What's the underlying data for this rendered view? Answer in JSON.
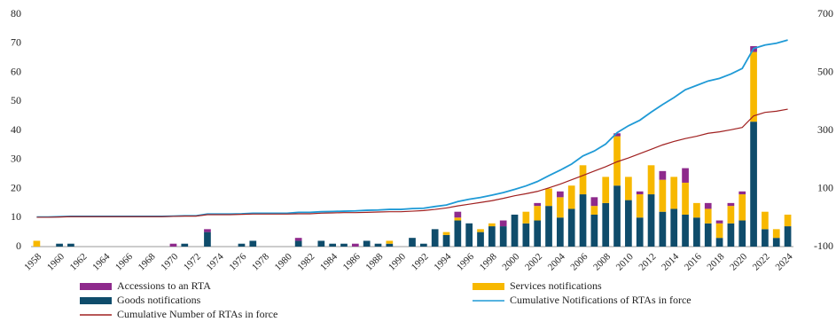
{
  "chart_data": {
    "type": "bar_line",
    "categories": [
      "1958",
      null,
      "1960",
      null,
      "1962",
      null,
      "1964",
      null,
      "1966",
      null,
      "1968",
      null,
      "1970",
      null,
      "1972",
      null,
      "1974",
      null,
      "1976",
      null,
      "1978",
      null,
      "1980",
      null,
      "1982",
      null,
      "1984",
      null,
      "1986",
      null,
      "1988",
      null,
      "1990",
      null,
      "1992",
      null,
      "1994",
      null,
      "1996",
      null,
      "1998",
      null,
      "2000",
      null,
      "2002",
      null,
      "2004",
      null,
      "2006",
      null,
      "2008",
      null,
      "2010",
      null,
      "2012",
      null,
      "2014",
      null,
      "2016",
      null,
      "2018",
      null,
      "2020",
      null,
      "2022",
      null,
      "2024"
    ],
    "ylim": [
      0,
      80
    ],
    "yticks": [
      0,
      10,
      20,
      30,
      40,
      50,
      60,
      70,
      80
    ],
    "y2lim": [
      -100,
      700
    ],
    "y2ticks": [
      -100,
      100,
      300,
      500,
      700
    ],
    "grid": false,
    "legend": "bottom",
    "series": [
      {
        "name": "Goods notifications",
        "type": "bar",
        "color": "#0f4c6b",
        "values": [
          0,
          0,
          1,
          1,
          0,
          0,
          0,
          0,
          0,
          0,
          0,
          0,
          0,
          1,
          0,
          5,
          0,
          0,
          1,
          2,
          0,
          0,
          0,
          2,
          0,
          2,
          1,
          1,
          0,
          2,
          1,
          1,
          0,
          3,
          1,
          6,
          4,
          9,
          8,
          5,
          7,
          7,
          11,
          8,
          9,
          14,
          10,
          13,
          18,
          11,
          15,
          21,
          16,
          10,
          18,
          12,
          13,
          11,
          10,
          8,
          3,
          8,
          9,
          43,
          6,
          3,
          7
        ]
      },
      {
        "name": "Services notifications",
        "type": "bar",
        "color": "#f7b800",
        "values": [
          2,
          0,
          0,
          0,
          0,
          0,
          0,
          0,
          0,
          0,
          0,
          0,
          0,
          0,
          0,
          0,
          0,
          0,
          0,
          0,
          0,
          0,
          0,
          0,
          0,
          0,
          0,
          0,
          0,
          0,
          0,
          1,
          0,
          0,
          0,
          0,
          1,
          1,
          0,
          1,
          1,
          0,
          0,
          4,
          5,
          6,
          7,
          8,
          10,
          3,
          9,
          17,
          8,
          8,
          10,
          11,
          11,
          11,
          5,
          5,
          5,
          6,
          9,
          24,
          6,
          3,
          4
        ]
      },
      {
        "name": "Accessions to an RTA",
        "type": "bar",
        "color": "#8e2a8c",
        "values": [
          0,
          0,
          0,
          0,
          0,
          0,
          0,
          0,
          0,
          0,
          0,
          0,
          1,
          0,
          0,
          1,
          0,
          0,
          0,
          0,
          0,
          0,
          0,
          1,
          0,
          0,
          0,
          0,
          1,
          0,
          0,
          0,
          0,
          0,
          0,
          0,
          0,
          2,
          0,
          0,
          0,
          2,
          0,
          0,
          1,
          0,
          2,
          0,
          0,
          3,
          0,
          1,
          0,
          1,
          0,
          3,
          0,
          5,
          0,
          2,
          1,
          1,
          1,
          2,
          0,
          0,
          0
        ]
      },
      {
        "name": "Cumulative Notifications of RTAs in force",
        "type": "line",
        "axis": "y2",
        "color": "#1f9ad6",
        "values": [
          2,
          2,
          3,
          4,
          4,
          4,
          4,
          4,
          4,
          4,
          4,
          4,
          5,
          6,
          6,
          12,
          12,
          12,
          13,
          15,
          15,
          15,
          15,
          18,
          18,
          20,
          21,
          22,
          23,
          25,
          26,
          28,
          28,
          31,
          32,
          38,
          43,
          55,
          63,
          69,
          77,
          86,
          97,
          109,
          124,
          144,
          163,
          184,
          212,
          229,
          253,
          292,
          316,
          335,
          363,
          389,
          413,
          440,
          455,
          470,
          479,
          494,
          513,
          582,
          594,
          600,
          611
        ]
      },
      {
        "name": "Cumulative Number of RTAs in force",
        "type": "line",
        "axis": "y2",
        "color": "#a02020",
        "values": [
          1,
          1,
          2,
          3,
          3,
          3,
          3,
          3,
          3,
          3,
          3,
          3,
          4,
          5,
          5,
          10,
          10,
          10,
          11,
          12,
          12,
          12,
          12,
          13,
          13,
          15,
          16,
          17,
          17,
          18,
          19,
          20,
          20,
          22,
          24,
          28,
          33,
          40,
          46,
          52,
          58,
          66,
          75,
          82,
          90,
          102,
          115,
          130,
          145,
          160,
          175,
          192,
          205,
          220,
          235,
          250,
          262,
          272,
          280,
          290,
          295,
          302,
          310,
          350,
          362,
          366,
          373
        ]
      }
    ]
  }
}
